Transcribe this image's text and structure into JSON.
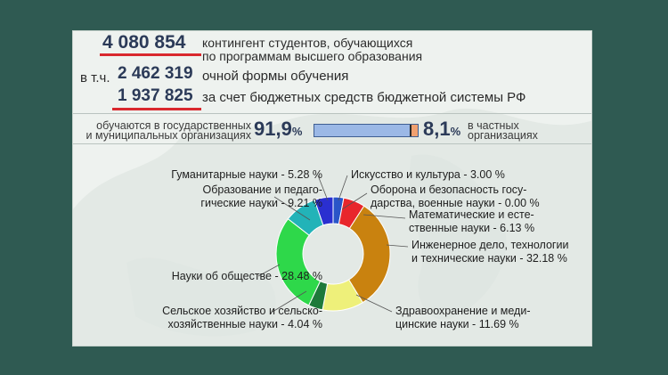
{
  "header": {
    "total_number": "4 080 854",
    "total_label_line1": "контингент студентов, обучающихся",
    "total_label_line2": "по программам высшего образования",
    "fulltime_prefix": "в т.ч.",
    "fulltime_number": "2 462 319",
    "fulltime_label": "очной формы обучения",
    "budget_number": "1 937 825",
    "budget_label": "за счет бюджетных средств бюджетной системы РФ"
  },
  "ownership": {
    "state_label_line1": "обучаются в государственных",
    "state_label_line2": "и муниципальных организациях",
    "state_pct": "91,9",
    "private_pct": "8,1",
    "pct_sign": "%",
    "private_label_line1": "в частных",
    "private_label_line2": "организациях",
    "state_share": 0.919,
    "private_share": 0.081
  },
  "colors": {
    "accent_red": "#d9282e",
    "bar_state": "#6e92c8",
    "bar_private": "#f0a070"
  },
  "chart_data": {
    "type": "pie",
    "donut": true,
    "slices": [
      {
        "label_lines": [
          "Искусство и культура - 3.00 %"
        ],
        "value": 3.0,
        "color": "#2a55c8"
      },
      {
        "label_lines": [
          "Оборона и безопасность госу-",
          "дарства, военные науки - 0.00 %"
        ],
        "value": 0.0,
        "color": "#8a2a8a"
      },
      {
        "label_lines": [
          "Математические и есте-",
          "ственные науки - 6.13 %"
        ],
        "value": 6.13,
        "color": "#e8262c"
      },
      {
        "label_lines": [
          "Инженерное дело, технологии",
          "и технические науки - 32.18 %"
        ],
        "value": 32.18,
        "color": "#c9820f"
      },
      {
        "label_lines": [
          "Здравоохранение и меди-",
          "цинские науки - 11.69 %"
        ],
        "value": 11.69,
        "color": "#eef07a"
      },
      {
        "label_lines": [
          "Сельское хозяйство и сельско-",
          "хозяйственные науки - 4.04 %"
        ],
        "value": 4.04,
        "color": "#1e7a3a"
      },
      {
        "label_lines": [
          "Науки об обществе - 28.48 %"
        ],
        "value": 28.48,
        "color": "#2ed84a"
      },
      {
        "label_lines": [
          "Образование и педаго-",
          "гические науки - 9.21 %"
        ],
        "value": 9.21,
        "color": "#22b3b8"
      },
      {
        "label_lines": [
          "Гуманитарные науки - 5.28 %"
        ],
        "value": 5.28,
        "color": "#2a2fd0"
      }
    ]
  }
}
